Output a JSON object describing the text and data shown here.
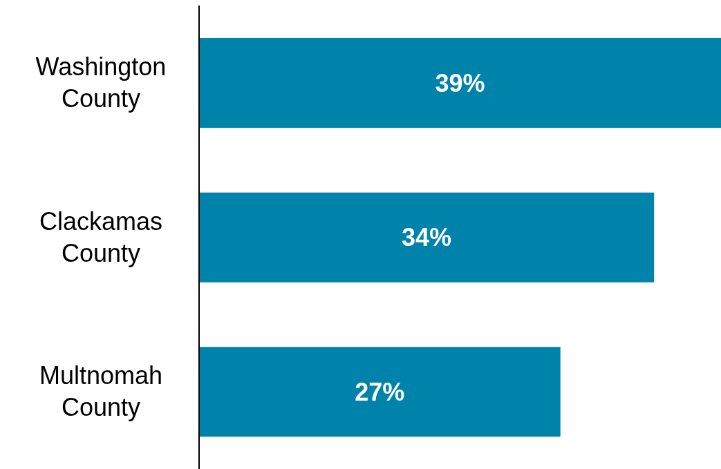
{
  "chart_data": {
    "type": "bar",
    "orientation": "horizontal",
    "categories": [
      "Washington County",
      "Clackamas County",
      "Multnomah County"
    ],
    "values": [
      39,
      34,
      27
    ],
    "value_labels": [
      "39%",
      "34%",
      "27%"
    ],
    "color": "#0083aa"
  }
}
